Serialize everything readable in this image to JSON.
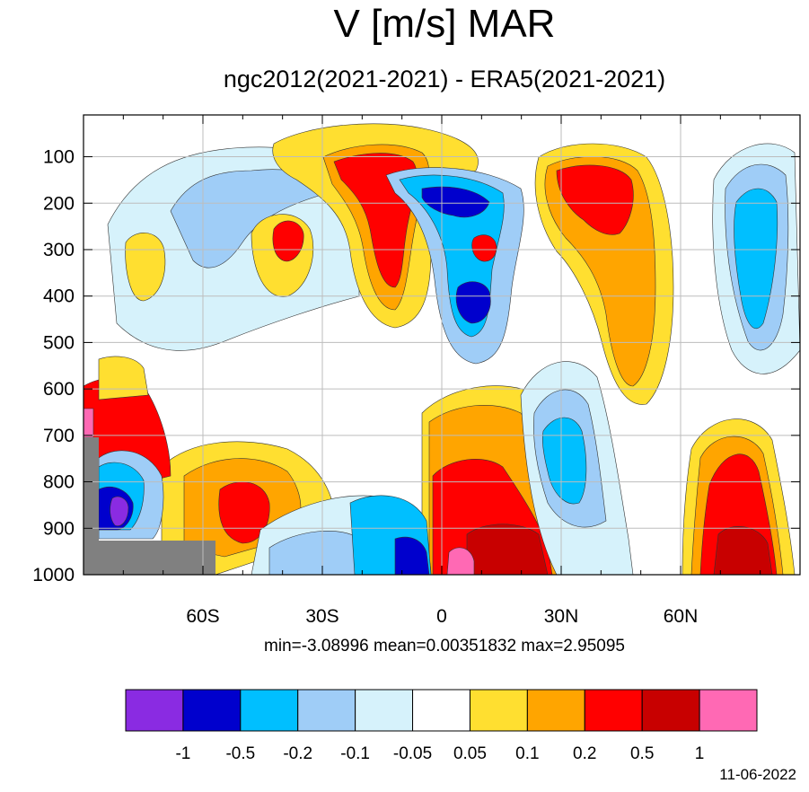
{
  "chart_data": {
    "type": "heatmap",
    "title": "V [m/s] MAR",
    "subtitle": "ngc2012(2021-2021) - ERA5(2021-2021)",
    "x_ticks": [
      "60S",
      "30S",
      "0",
      "30N",
      "60N"
    ],
    "x_tick_values": [
      -60,
      -30,
      0,
      30,
      60
    ],
    "xlim": [
      -90,
      90
    ],
    "y_ticks": [
      "100",
      "200",
      "300",
      "400",
      "500",
      "600",
      "700",
      "800",
      "900",
      "1000"
    ],
    "y_tick_values": [
      100,
      200,
      300,
      400,
      500,
      600,
      700,
      800,
      900,
      1000
    ],
    "ylim": [
      1000,
      10
    ],
    "grid": true,
    "stats": "min=-3.08996   mean=0.00351832   max=2.95095",
    "colorbar": {
      "levels": [
        "-1",
        "-0.5",
        "-0.2",
        "-0.1",
        "-0.05",
        "0.05",
        "0.1",
        "0.2",
        "0.5",
        "1"
      ],
      "colors": [
        "#8a2be2",
        "#0000cd",
        "#00bfff",
        "#9fcdf7",
        "#d6f2fb",
        "#ffffff",
        "#ffdf30",
        "#ffa500",
        "#ff0000",
        "#c80000",
        "#ff69b4"
      ]
    },
    "regions": [
      {
        "lat": -5,
        "p": 290,
        "value": 0.3
      },
      {
        "lat": 5,
        "p": 210,
        "value": -0.7
      },
      {
        "lat": 8,
        "p": 380,
        "value": -0.6
      },
      {
        "lat": 10,
        "p": 280,
        "value": 0.4
      },
      {
        "lat": 38,
        "p": 220,
        "value": 0.3
      },
      {
        "lat": 75,
        "p": 300,
        "value": -0.25
      },
      {
        "lat": -40,
        "p": 270,
        "value": 0.3
      },
      {
        "lat": -45,
        "p": 850,
        "value": 0.3
      },
      {
        "lat": 10,
        "p": 800,
        "value": 0.35
      },
      {
        "lat": 70,
        "p": 850,
        "value": 0.4
      },
      {
        "lat": 3,
        "p": 940,
        "value": 0.6
      },
      {
        "lat": -20,
        "p": 900,
        "value": -0.3
      },
      {
        "lat": -10,
        "p": 930,
        "value": -0.6
      },
      {
        "lat": -82,
        "p": 860,
        "value": -0.6
      },
      {
        "lat": -80,
        "p": 700,
        "value": 0.4
      },
      {
        "lat": 33,
        "p": 850,
        "value": -0.2
      }
    ],
    "missing_color": "#808080"
  },
  "date": "11-06-2022"
}
